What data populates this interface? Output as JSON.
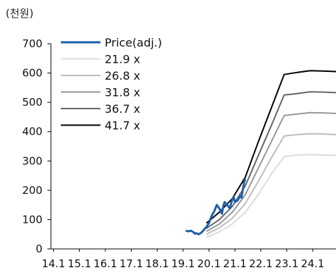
{
  "chart_data": {
    "type": "line",
    "unit_label": "(천원)",
    "ylim": [
      0,
      700
    ],
    "yticks": [
      0,
      100,
      200,
      300,
      400,
      500,
      600,
      700
    ],
    "xlim": [
      2014.0,
      2025.0
    ],
    "xtick_values": [
      2014.1,
      2015.1,
      2016.1,
      2017.1,
      2018.1,
      2019.1,
      2020.1,
      2021.1,
      2022.1,
      2023.1,
      2024.1
    ],
    "xtick_labels": [
      "14.1",
      "15.1",
      "16.1",
      "17.1",
      "18.1",
      "19.1",
      "20.1",
      "21.1",
      "22.1",
      "23.1",
      "24.1"
    ],
    "legend_position": "top-left",
    "price_series": {
      "name": "Price(adj.)",
      "color": "#1f5fa8",
      "x": [
        2019.2,
        2019.3,
        2019.4,
        2019.5,
        2019.55,
        2019.6,
        2019.7,
        2019.8,
        2019.9,
        2020.0,
        2020.1,
        2020.15,
        2020.2,
        2020.3,
        2020.4,
        2020.5,
        2020.6,
        2020.65,
        2020.7,
        2020.8,
        2020.9,
        2021.0,
        2021.05,
        2021.1,
        2021.2,
        2021.3,
        2021.35,
        2021.4,
        2021.45,
        2021.5
      ],
      "y": [
        62,
        60,
        62,
        57,
        52,
        54,
        50,
        55,
        65,
        75,
        88,
        100,
        112,
        128,
        150,
        138,
        120,
        145,
        160,
        150,
        138,
        170,
        178,
        160,
        165,
        180,
        175,
        200,
        225,
        240
      ]
    },
    "band_series": [
      {
        "name": "21.9 x",
        "color": "#dcdcdc",
        "x": [
          2020.0,
          2020.5,
          2021.0,
          2021.5,
          2022.0,
          2022.5,
          2023.0,
          2023.5,
          2024.0,
          2024.5,
          2025.0
        ],
        "y": [
          40,
          58,
          85,
          125,
          185,
          255,
          315,
          320,
          322,
          320,
          319
        ]
      },
      {
        "name": "26.8 x",
        "color": "#bdbdbd",
        "x": [
          2020.0,
          2020.5,
          2021.0,
          2021.5,
          2022.0,
          2022.5,
          2023.0,
          2023.5,
          2024.0,
          2024.5,
          2025.0
        ],
        "y": [
          50,
          72,
          105,
          155,
          230,
          310,
          385,
          390,
          393,
          392,
          390
        ]
      },
      {
        "name": "31.8 x",
        "color": "#979797",
        "x": [
          2020.0,
          2020.5,
          2021.0,
          2021.5,
          2022.0,
          2022.5,
          2023.0,
          2023.5,
          2024.0,
          2024.5,
          2025.0
        ],
        "y": [
          60,
          85,
          125,
          185,
          275,
          365,
          455,
          460,
          465,
          464,
          462
        ]
      },
      {
        "name": "36.7 x",
        "color": "#666666",
        "x": [
          2020.0,
          2020.5,
          2021.0,
          2021.5,
          2022.0,
          2022.5,
          2023.0,
          2023.5,
          2024.0,
          2024.5,
          2025.0
        ],
        "y": [
          70,
          100,
          145,
          215,
          318,
          420,
          525,
          530,
          536,
          535,
          533
        ]
      },
      {
        "name": "41.7 x",
        "color": "#000000",
        "x": [
          2020.0,
          2020.5,
          2021.0,
          2021.5,
          2022.0,
          2022.5,
          2023.0,
          2023.5,
          2024.0,
          2024.5,
          2025.0
        ],
        "y": [
          88,
          125,
          172,
          245,
          365,
          480,
          595,
          602,
          608,
          607,
          605
        ]
      }
    ]
  }
}
